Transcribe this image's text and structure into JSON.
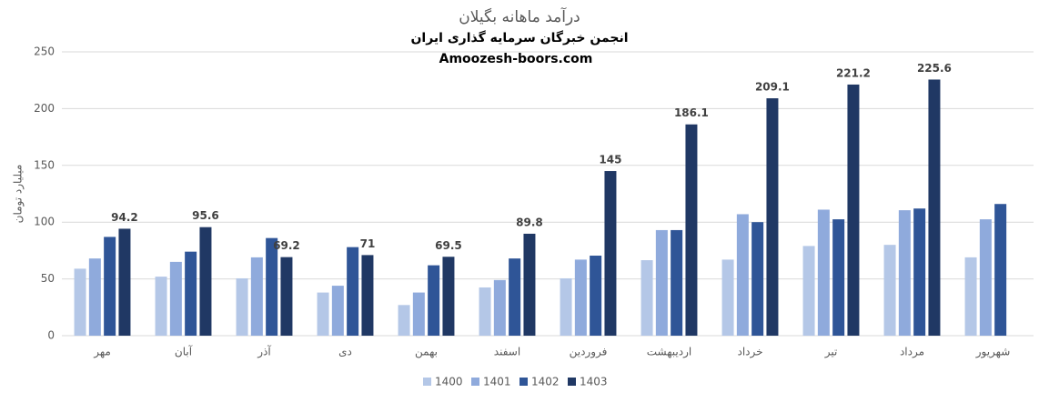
{
  "chart_data": {
    "type": "bar",
    "title": "درآمد ماهانه بگیلان",
    "subtitle": "انجمن خبرگان سرمایه گذاری ایران",
    "annotation": "Amoozesh-boors.com",
    "y_label": "میلیارد تومان",
    "categories": [
      "مهر",
      "آبان",
      "آذر",
      "دی",
      "بهمن",
      "اسفند",
      "فروردین",
      "اردیبهشت",
      "خرداد",
      "تیر",
      "مرداد",
      "شهریور"
    ],
    "series": [
      {
        "name": "1400",
        "color": "#b4c7e7",
        "values": [
          59,
          52,
          50.5,
          38,
          27,
          42.5,
          50.5,
          66.5,
          67,
          79,
          80,
          69
        ]
      },
      {
        "name": "1401",
        "color": "#8faadc",
        "values": [
          68,
          65,
          69,
          44,
          38,
          49,
          67,
          93,
          107,
          111,
          110.5,
          102.5
        ]
      },
      {
        "name": "1402",
        "color": "#2f5597",
        "values": [
          87,
          74,
          86,
          78,
          62,
          68,
          70.5,
          93,
          100,
          102.5,
          112,
          116
        ]
      },
      {
        "name": "1403",
        "color": "#203864",
        "values": [
          94.2,
          95.6,
          69.2,
          71,
          69.5,
          89.8,
          145,
          186.1,
          209.1,
          221.2,
          225.6,
          null
        ],
        "data_labels": true
      }
    ],
    "ylim": [
      0,
      250
    ],
    "yticks": [
      0,
      50,
      100,
      150,
      200,
      250
    ],
    "grid": true,
    "legend": "bottom"
  }
}
